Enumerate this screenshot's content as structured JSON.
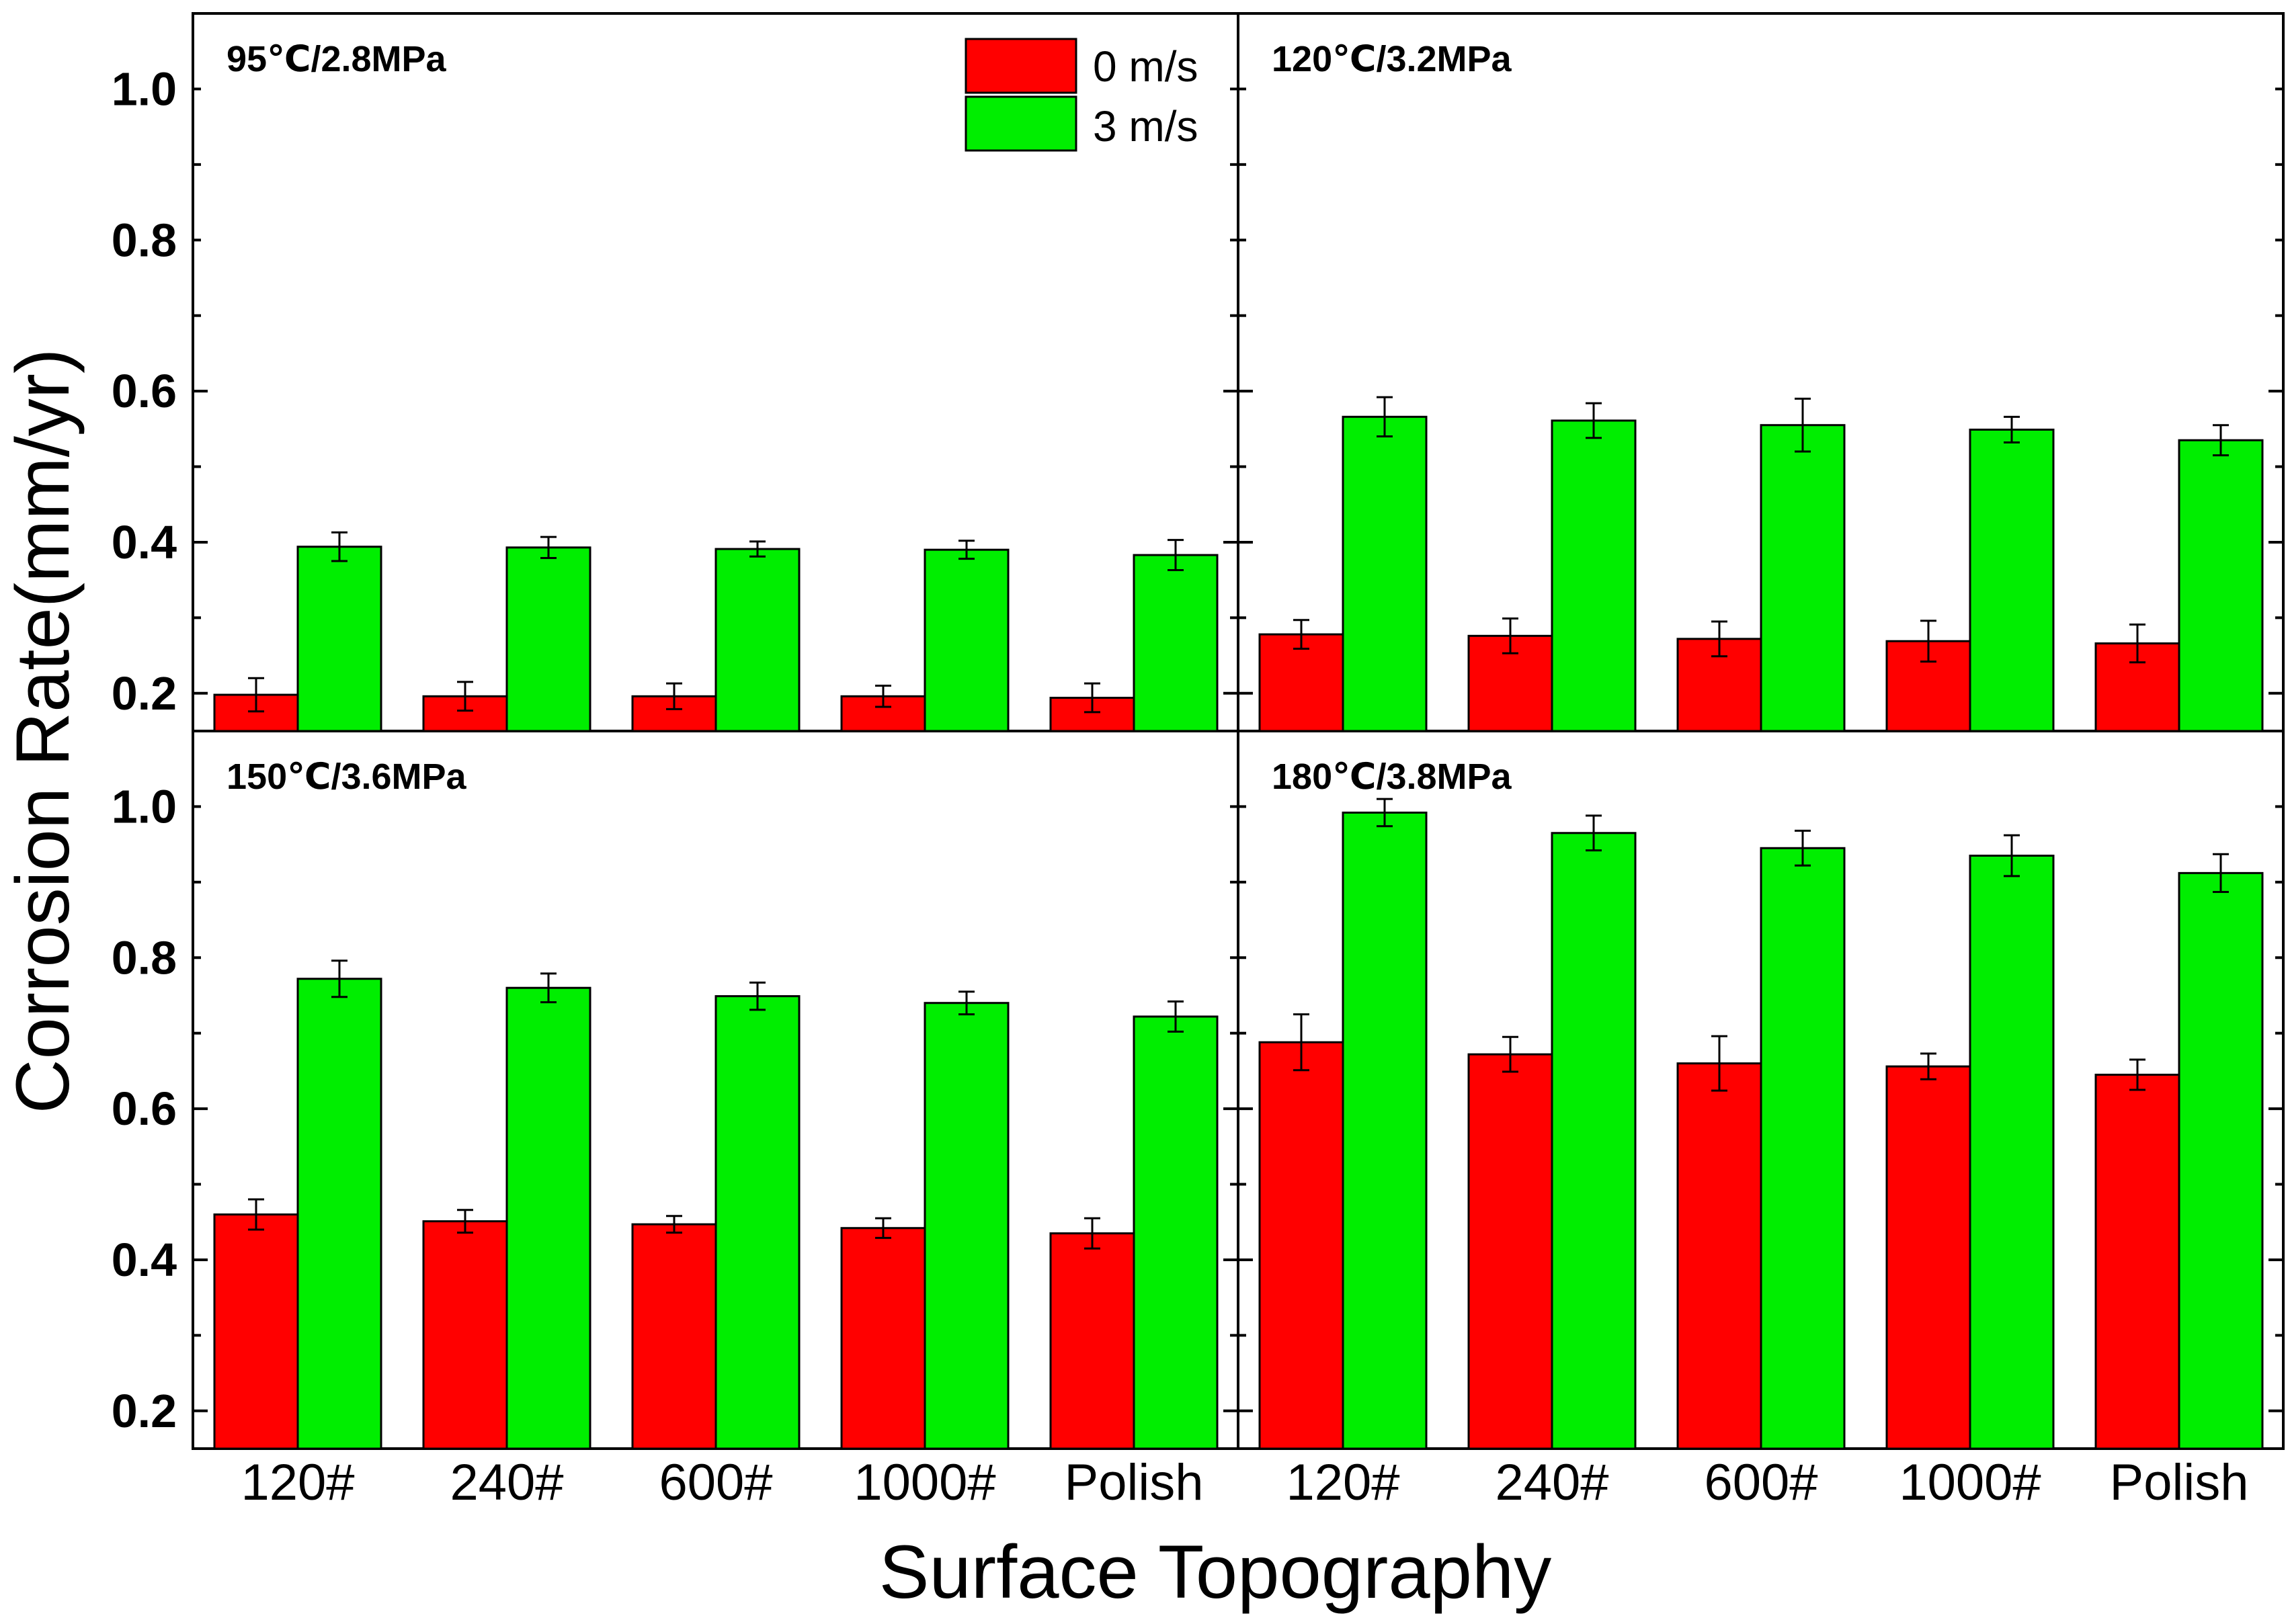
{
  "chart_data": {
    "type": "bar",
    "ylabel": "Corrosion Rate(mm/yr)",
    "xlabel": "Surface Topography",
    "ylim": [
      0.15,
      1.1
    ],
    "yticks": [
      0.2,
      0.4,
      0.6,
      0.8,
      1.0
    ],
    "ytick_labels": [
      "0.2",
      "0.4",
      "0.6",
      "0.8",
      "1.0"
    ],
    "categories": [
      "120#",
      "240#",
      "600#",
      "1000#",
      "Polish"
    ],
    "legend": [
      {
        "name": "0 m/s",
        "color": "#ff0000"
      },
      {
        "name": "3 m/s",
        "color": "#00ee00"
      }
    ],
    "legend_position": "top-right of top-left panel",
    "panels": [
      {
        "title": "95℃/2.8MPa",
        "series": [
          {
            "name": "0 m/s",
            "values": [
              0.198,
              0.196,
              0.196,
              0.196,
              0.194
            ],
            "errors": [
              0.022,
              0.019,
              0.017,
              0.014,
              0.019
            ]
          },
          {
            "name": "3 m/s",
            "values": [
              0.394,
              0.393,
              0.391,
              0.39,
              0.383
            ],
            "errors": [
              0.019,
              0.014,
              0.01,
              0.012,
              0.02
            ]
          }
        ]
      },
      {
        "title": "120℃/3.2MPa",
        "series": [
          {
            "name": "0 m/s",
            "values": [
              0.278,
              0.276,
              0.272,
              0.269,
              0.266
            ],
            "errors": [
              0.019,
              0.023,
              0.023,
              0.027,
              0.025
            ]
          },
          {
            "name": "3 m/s",
            "values": [
              0.566,
              0.561,
              0.555,
              0.549,
              0.535
            ],
            "errors": [
              0.026,
              0.023,
              0.035,
              0.017,
              0.02
            ]
          }
        ]
      },
      {
        "title": "150℃/3.6MPa",
        "series": [
          {
            "name": "0 m/s",
            "values": [
              0.46,
              0.451,
              0.447,
              0.442,
              0.435
            ],
            "errors": [
              0.02,
              0.015,
              0.011,
              0.013,
              0.02
            ]
          },
          {
            "name": "3 m/s",
            "values": [
              0.772,
              0.76,
              0.749,
              0.74,
              0.722
            ],
            "errors": [
              0.024,
              0.019,
              0.018,
              0.015,
              0.02
            ]
          }
        ]
      },
      {
        "title": "180℃/3.8MPa",
        "series": [
          {
            "name": "0 m/s",
            "values": [
              0.688,
              0.672,
              0.66,
              0.656,
              0.645
            ],
            "errors": [
              0.037,
              0.023,
              0.036,
              0.017,
              0.02
            ]
          },
          {
            "name": "3 m/s",
            "values": [
              0.992,
              0.965,
              0.945,
              0.935,
              0.912
            ],
            "errors": [
              0.018,
              0.023,
              0.023,
              0.027,
              0.025
            ]
          }
        ]
      }
    ]
  }
}
